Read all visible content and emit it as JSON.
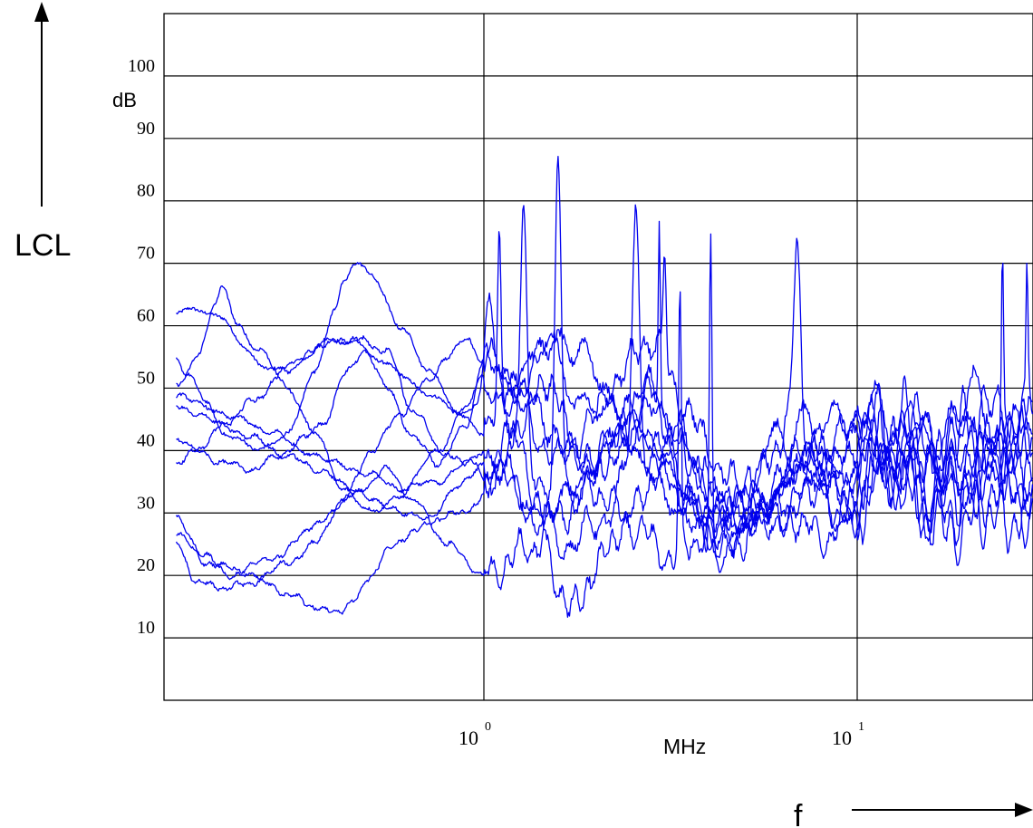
{
  "chart_data": {
    "type": "line",
    "xscale": "log",
    "xlim": [
      0.15,
      30
    ],
    "ylim": [
      0,
      110
    ],
    "grid": true,
    "line_color": "#0000ee",
    "ylabel": "LCL",
    "yunit": "dB",
    "xlabel": "f",
    "xunit": "MHz",
    "yticks": [
      "10",
      "20",
      "30",
      "40",
      "50",
      "60",
      "70",
      "80",
      "90",
      "100"
    ],
    "xticks": [
      {
        "base": "10",
        "exp": "0",
        "value": 1
      },
      {
        "base": "10",
        "exp": "1",
        "value": 10
      }
    ],
    "series": [
      {
        "x": [
          0.15,
          0.17,
          0.2,
          0.23,
          0.27,
          0.32,
          0.38,
          0.45,
          0.55,
          0.7,
          0.9,
          1.0,
          1.2,
          1.5,
          1.8,
          2.2,
          2.7,
          3.3,
          4,
          5,
          6,
          7.5,
          9,
          11,
          13,
          16,
          20,
          25,
          30
        ],
        "y": [
          62,
          63,
          61,
          56,
          53,
          54,
          58,
          57,
          54,
          49,
          46,
          48,
          53,
          56,
          49,
          45,
          39,
          34,
          28,
          27,
          33,
          38,
          36,
          40,
          43,
          38,
          37,
          41,
          35
        ]
      },
      {
        "x": [
          0.15,
          0.16,
          0.18,
          0.2,
          0.25,
          0.3,
          0.35,
          0.4,
          0.42,
          0.45,
          0.5,
          0.6,
          0.7,
          0.9,
          1.0,
          1.1,
          1.2,
          1.3,
          1.45,
          1.6,
          1.8,
          2.2,
          2.6,
          3,
          3.6,
          4.3,
          5,
          6,
          7,
          8.5,
          10,
          12,
          15,
          19,
          24,
          30
        ],
        "y": [
          55,
          52,
          48,
          43,
          40,
          43,
          52,
          63,
          67,
          70,
          68,
          60,
          53,
          45,
          42,
          47,
          52,
          49,
          57,
          59,
          55,
          49,
          43,
          35,
          28,
          24,
          29,
          33,
          45,
          38,
          44,
          47,
          39,
          49,
          42,
          46
        ]
      },
      {
        "x": [
          0.15,
          0.17,
          0.19,
          0.2,
          0.22,
          0.25,
          0.3,
          0.35,
          0.42,
          0.5,
          0.6,
          0.75,
          0.9,
          1.0,
          1.1,
          1.25,
          1.4,
          1.6,
          1.8,
          2.1,
          2.5,
          3,
          3.5,
          4.2,
          5,
          6,
          7.5,
          9,
          11,
          14,
          18,
          23,
          30
        ],
        "y": [
          50,
          55,
          63,
          66,
          60,
          56,
          50,
          43,
          34,
          30,
          33,
          40,
          47,
          52,
          49,
          40,
          35,
          31,
          34,
          41,
          46,
          40,
          34,
          28,
          31,
          42,
          36,
          29,
          37,
          44,
          35,
          41,
          33
        ]
      },
      {
        "x": [
          0.15,
          0.18,
          0.22,
          0.27,
          0.33,
          0.4,
          0.5,
          0.6,
          0.75,
          0.9,
          1.0,
          1.15,
          1.3,
          1.5,
          1.7,
          2,
          2.4,
          2.9,
          3.4,
          4.1,
          5,
          6.2,
          7.5,
          9,
          11,
          14,
          18,
          23,
          30
        ],
        "y": [
          49,
          47,
          45,
          43,
          40,
          38,
          36,
          34,
          35,
          38,
          40,
          36,
          31,
          29,
          33,
          37,
          42,
          47,
          40,
          33,
          29,
          34,
          41,
          46,
          39,
          35,
          43,
          37,
          45
        ]
      },
      {
        "x": [
          0.15,
          0.17,
          0.2,
          0.24,
          0.3,
          0.36,
          0.44,
          0.55,
          0.7,
          0.85,
          1.0,
          1.2,
          1.4,
          1.7,
          2,
          2.4,
          2.9,
          3.5,
          4.2,
          5,
          6,
          7.2,
          8.6,
          10,
          12,
          15,
          19,
          24,
          30
        ],
        "y": [
          47,
          46,
          44,
          42,
          39,
          37,
          34,
          31,
          29,
          34,
          38,
          35,
          29,
          25,
          28,
          35,
          41,
          32,
          26,
          27,
          33,
          40,
          35,
          30,
          37,
          43,
          34,
          40,
          31
        ]
      },
      {
        "x": [
          0.15,
          0.17,
          0.2,
          0.24,
          0.28,
          0.33,
          0.38,
          0.42,
          0.48,
          0.55,
          0.65,
          0.75,
          0.9,
          1.0,
          1.2,
          1.5,
          1.8,
          2.2,
          2.7,
          3.2,
          3.8,
          4.5,
          5.5,
          6.5,
          8,
          10,
          12,
          15,
          19,
          24,
          30
        ],
        "y": [
          42,
          40,
          38,
          37,
          39,
          42,
          45,
          52,
          56,
          50,
          42,
          38,
          44,
          55,
          51,
          44,
          38,
          41,
          50,
          45,
          36,
          31,
          27,
          30,
          38,
          46,
          38,
          31,
          40,
          47,
          42
        ]
      },
      {
        "x": [
          0.15,
          0.18,
          0.21,
          0.25,
          0.3,
          0.35,
          0.42,
          0.5,
          0.6,
          0.7,
          0.8,
          0.9,
          1.0,
          1.2,
          1.4,
          1.6,
          1.9,
          2.3,
          2.8,
          3.4,
          4.1,
          5,
          6,
          7.3,
          9,
          11,
          14,
          18,
          23,
          30
        ],
        "y": [
          29,
          23,
          20,
          20,
          22,
          25,
          32,
          40,
          46,
          51,
          55,
          58,
          54,
          48,
          42,
          38,
          44,
          52,
          58,
          48,
          39,
          33,
          29,
          32,
          38,
          44,
          36,
          33,
          38,
          46
        ]
      },
      {
        "x": [
          0.15,
          0.18,
          0.22,
          0.28,
          0.35,
          0.45,
          0.55,
          0.65,
          0.8,
          1.0,
          1.3,
          1.6,
          2.0,
          2.5,
          3.2,
          4,
          5,
          6.5,
          8,
          10,
          12,
          15,
          19,
          24,
          30
        ],
        "y": [
          27,
          22,
          21,
          23,
          28,
          33,
          37,
          32,
          25,
          20,
          24,
          30,
          34,
          28,
          23,
          27,
          34,
          30,
          26,
          31,
          38,
          32,
          28,
          35,
          30
        ]
      },
      {
        "x": [
          0.15,
          0.17,
          0.2,
          0.25,
          0.3,
          0.35,
          0.4,
          0.45,
          0.5,
          0.55,
          0.65,
          0.75,
          0.85,
          0.95,
          1.0,
          1.1,
          1.25,
          1.4,
          1.55,
          1.7,
          2,
          2.4,
          2.9,
          3.5,
          4.2,
          5,
          6,
          7.5,
          9,
          11,
          13,
          16,
          20,
          25,
          30
        ],
        "y": [
          25,
          19,
          18,
          19,
          17,
          15,
          14,
          16,
          20,
          24,
          27,
          29,
          30,
          31,
          33,
          38,
          42,
          30,
          20,
          14,
          21,
          29,
          36,
          33,
          24,
          26,
          33,
          40,
          29,
          35,
          43,
          27,
          32,
          28,
          35
        ]
      },
      {
        "x": [
          0.15,
          0.17,
          0.2,
          0.24,
          0.3,
          0.37,
          0.45,
          0.55,
          0.65,
          0.8,
          0.95,
          1.0,
          1.15,
          1.3,
          1.5,
          1.7,
          2,
          2.4,
          2.8,
          3.3,
          3.9,
          4.6,
          5.5,
          6.5,
          8,
          9.5,
          11,
          13,
          16,
          20,
          25,
          30
        ],
        "y": [
          38,
          40,
          44,
          48,
          53,
          57,
          58,
          56,
          46,
          39,
          38,
          35,
          41,
          46,
          52,
          42,
          37,
          43,
          49,
          41,
          35,
          30,
          36,
          44,
          39,
          33,
          40,
          46,
          37,
          44,
          38,
          42
        ]
      }
    ],
    "peaks": [
      {
        "x": 1.03,
        "y": 64,
        "w": 0.015
      },
      {
        "x": 1.1,
        "y": 79,
        "w": 0.007
      },
      {
        "x": 1.28,
        "y": 77,
        "w": 0.012
      },
      {
        "x": 1.58,
        "y": 87,
        "w": 0.012
      },
      {
        "x": 2.55,
        "y": 77.5,
        "w": 0.014
      },
      {
        "x": 2.95,
        "y": 78.5,
        "w": 0.004
      },
      {
        "x": 3.05,
        "y": 71,
        "w": 0.006
      },
      {
        "x": 3.35,
        "y": 64,
        "w": 0.005
      },
      {
        "x": 4.05,
        "y": 76.5,
        "w": 0.005
      },
      {
        "x": 6.9,
        "y": 71.5,
        "w": 0.014
      },
      {
        "x": 24.5,
        "y": 69,
        "w": 0.004
      },
      {
        "x": 28.5,
        "y": 66,
        "w": 0.004
      }
    ]
  }
}
